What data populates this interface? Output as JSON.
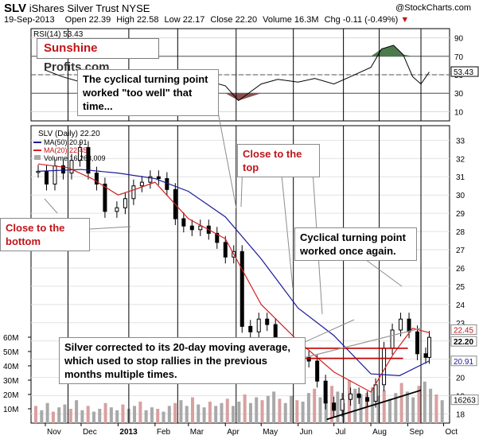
{
  "header": {
    "symbol": "SLV",
    "name": "iShares Silver Trust",
    "exchange": "NYSE",
    "watermark": "@StockCharts.com",
    "date": "19-Sep-2013",
    "open_label": "Open",
    "open": "22.39",
    "high_label": "High",
    "high": "22.58",
    "low_label": "Low",
    "low": "22.17",
    "close_label": "Close",
    "close": "22.20",
    "volume_label": "Volume",
    "volume": "16.3M",
    "chg_label": "Chg",
    "chg": "-0.11 (-0.49%)"
  },
  "logo": {
    "part1": "Sunshine",
    "part2": "Profits.com"
  },
  "annotations": {
    "bottom": "Close to the bottom",
    "top": "Close to the top",
    "turning1_line1": "The cyclical turning point",
    "turning1_line2": "worked \"too well\" that time...",
    "turning2_line1": "Cyclical turning point",
    "turning2_line2": "worked once again.",
    "silver_line1": "Silver corrected to its 20-day moving average,",
    "silver_line2": "which used to stop rallies in the previous",
    "silver_line3": "months multiple times."
  },
  "colors": {
    "candle": "#000000",
    "ma50": "#1a1a99",
    "ma20": "#d42020",
    "volume_up": "#a9a9a9",
    "volume_down": "#d9a0a0",
    "rsi_line": "#000000",
    "rsi_over": "#4d7a4d",
    "rsi_under": "#8a5050",
    "annotation_red": "#c0151a"
  },
  "chart_data": [
    {
      "type": "line",
      "title": "RSI(14) 53.43",
      "series": [
        {
          "name": "RSI(14)",
          "current": 53.43
        }
      ],
      "y_ticks": [
        10,
        30,
        50,
        70,
        90
      ],
      "ylim": [
        0,
        100
      ],
      "overbought": 70,
      "oversold": 30,
      "current_label": "53.43",
      "x": [
        "2012-11-01",
        "2012-11-15",
        "2012-12-01",
        "2012-12-15",
        "2013-01-01",
        "2013-01-15",
        "2013-02-01",
        "2013-02-15",
        "2013-03-01",
        "2013-03-15",
        "2013-04-01",
        "2013-04-12",
        "2013-05-01",
        "2013-05-15",
        "2013-06-01",
        "2013-06-15",
        "2013-07-01",
        "2013-07-15",
        "2013-08-01",
        "2013-08-10",
        "2013-08-20",
        "2013-08-28",
        "2013-09-05",
        "2013-09-12",
        "2013-09-19"
      ],
      "values": [
        55,
        48,
        42,
        50,
        46,
        52,
        55,
        46,
        40,
        44,
        38,
        22,
        40,
        45,
        42,
        46,
        40,
        48,
        58,
        78,
        82,
        72,
        48,
        40,
        53
      ]
    },
    {
      "type": "candlestick",
      "title": "SLV (Daily) 22.20",
      "y_ticks": [
        18,
        19,
        20,
        21,
        22,
        23,
        24,
        25,
        26,
        27,
        28,
        29,
        30,
        31,
        32,
        33
      ],
      "ylim": [
        17.5,
        33.8
      ],
      "x_ticks": [
        "Nov",
        "Dec",
        "2013",
        "Feb",
        "Mar",
        "Apr",
        "May",
        "Jun",
        "Jul",
        "Aug",
        "Sep",
        "Oct"
      ],
      "price_labels": {
        "ma20": "22.45",
        "close": "22.20",
        "ma50": "20.91"
      },
      "series": [
        {
          "name": "SLV",
          "last": 22.2,
          "points": [
            [
              "2012-10-26",
              31.3
            ],
            [
              "2012-11-02",
              30.6
            ],
            [
              "2012-11-09",
              31.6
            ],
            [
              "2012-11-16",
              31.2
            ],
            [
              "2012-11-23",
              31.9
            ],
            [
              "2012-11-30",
              32.6
            ],
            [
              "2012-12-07",
              31.2
            ],
            [
              "2012-12-14",
              30.6
            ],
            [
              "2012-12-21",
              29.1
            ],
            [
              "2012-12-31",
              29.3
            ],
            [
              "2013-01-07",
              29.8
            ],
            [
              "2013-01-14",
              30.5
            ],
            [
              "2013-01-21",
              30.7
            ],
            [
              "2013-01-28",
              31.0
            ],
            [
              "2013-02-04",
              30.9
            ],
            [
              "2013-02-11",
              30.3
            ],
            [
              "2013-02-18",
              28.7
            ],
            [
              "2013-02-25",
              28.3
            ],
            [
              "2013-03-04",
              28.1
            ],
            [
              "2013-03-11",
              28.3
            ],
            [
              "2013-03-18",
              27.9
            ],
            [
              "2013-03-25",
              27.4
            ],
            [
              "2013-04-01",
              26.6
            ],
            [
              "2013-04-08",
              26.9
            ],
            [
              "2013-04-15",
              22.8
            ],
            [
              "2013-04-22",
              22.5
            ],
            [
              "2013-04-29",
              23.2
            ],
            [
              "2013-05-06",
              22.9
            ],
            [
              "2013-05-13",
              21.6
            ],
            [
              "2013-05-20",
              21.3
            ],
            [
              "2013-05-27",
              21.6
            ],
            [
              "2013-06-03",
              21.1
            ],
            [
              "2013-06-10",
              20.9
            ],
            [
              "2013-06-17",
              19.8
            ],
            [
              "2013-06-24",
              18.6
            ],
            [
              "2013-07-01",
              18.2
            ],
            [
              "2013-07-08",
              18.8
            ],
            [
              "2013-07-15",
              19.1
            ],
            [
              "2013-07-22",
              18.9
            ],
            [
              "2013-07-29",
              18.7
            ],
            [
              "2013-08-05",
              19.6
            ],
            [
              "2013-08-12",
              21.6
            ],
            [
              "2013-08-19",
              22.6
            ],
            [
              "2013-08-26",
              23.2
            ],
            [
              "2013-09-02",
              22.5
            ],
            [
              "2013-09-09",
              21.3
            ],
            [
              "2013-09-16",
              21.1
            ],
            [
              "2013-09-19",
              22.2
            ]
          ]
        },
        {
          "name": "MA(50)",
          "last": 20.91,
          "points": [
            [
              "2012-10-26",
              31.3
            ],
            [
              "2012-12-01",
              31.4
            ],
            [
              "2013-01-01",
              31.2
            ],
            [
              "2013-02-01",
              30.9
            ],
            [
              "2013-03-01",
              30.2
            ],
            [
              "2013-04-01",
              28.8
            ],
            [
              "2013-05-01",
              26.5
            ],
            [
              "2013-06-01",
              23.8
            ],
            [
              "2013-07-01",
              22.3
            ],
            [
              "2013-08-01",
              20.2
            ],
            [
              "2013-08-25",
              20.1
            ],
            [
              "2013-09-19",
              20.91
            ]
          ]
        },
        {
          "name": "MA(20)",
          "last": 22.45,
          "points": [
            [
              "2012-10-26",
              31.7
            ],
            [
              "2012-11-20",
              31.5
            ],
            [
              "2012-12-10",
              30.9
            ],
            [
              "2013-01-01",
              30.0
            ],
            [
              "2013-01-15",
              30.3
            ],
            [
              "2013-02-01",
              30.7
            ],
            [
              "2013-03-01",
              28.7
            ],
            [
              "2013-04-01",
              27.6
            ],
            [
              "2013-05-01",
              24.0
            ],
            [
              "2013-06-01",
              22.0
            ],
            [
              "2013-07-01",
              20.3
            ],
            [
              "2013-08-01",
              19.2
            ],
            [
              "2013-08-20",
              21.3
            ],
            [
              "2013-09-05",
              22.7
            ],
            [
              "2013-09-19",
              22.45
            ]
          ]
        }
      ],
      "resistance_lines": [
        {
          "y": 21.6,
          "from": "2013-05-01",
          "to": "2013-09-01"
        },
        {
          "y": 21.05,
          "from": "2013-05-15",
          "to": "2013-08-28"
        }
      ],
      "trend_line": {
        "from": [
          "2013-06-25",
          17.7
        ],
        "to": [
          "2013-09-12",
          19.3
        ]
      },
      "upper_line": {
        "from": [
          "2013-06-01",
          21.0
        ],
        "to": [
          "2013-09-12",
          22.7
        ]
      },
      "vertical_lines": [
        "2012-11-20",
        "2013-01-10",
        "2013-02-20",
        "2013-04-10",
        "2013-05-28",
        "2013-07-09",
        "2013-08-08",
        "2013-09-12"
      ]
    },
    {
      "type": "bar",
      "title": "Volume 16,263,009",
      "series": [
        {
          "name": "Volume",
          "last": 16263009
        }
      ],
      "y_ticks": [
        "10M",
        "20M",
        "30M",
        "40M",
        "50M",
        "60M"
      ],
      "y_tick_values": [
        10,
        20,
        30,
        40,
        50,
        60
      ],
      "ylim": [
        0,
        65
      ],
      "current_label": "16263",
      "values_m": [
        12,
        9,
        14,
        8,
        11,
        13,
        10,
        16,
        9,
        12,
        8,
        10,
        14,
        11,
        9,
        13,
        10,
        12,
        15,
        9,
        11,
        10,
        8,
        12,
        14,
        16,
        12,
        18,
        13,
        11,
        15,
        12,
        14,
        17,
        12,
        15,
        20,
        14,
        18,
        16,
        19,
        22,
        17,
        14,
        19,
        16,
        15,
        21,
        24,
        18,
        16,
        26,
        22,
        14,
        30,
        24,
        20,
        21,
        25,
        19,
        23,
        17,
        21,
        28,
        22,
        18,
        26,
        29,
        24,
        20,
        16
      ]
    }
  ],
  "legend": {
    "slv": "SLV (Daily) 22.20",
    "ma50": "MA(50) 20.91",
    "ma20": "MA(20) 22.45",
    "vol": "Volume 16,263,009"
  }
}
